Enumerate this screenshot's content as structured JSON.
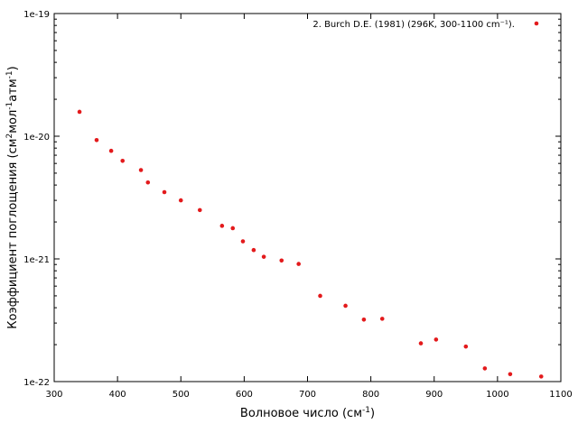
{
  "chart_data": {
    "type": "scatter",
    "title": "",
    "xlabel": {
      "base": "Волновое число (см",
      "sup": "-1",
      "tail": ")"
    },
    "ylabel": {
      "p1": "Коэффициент поглощения (см",
      "s1": "2",
      "p2": "мол",
      "s2": "-1",
      "p3": "атм",
      "s3": "-1",
      "p4": ")"
    },
    "xlim": [
      300,
      1100
    ],
    "ylim": [
      1e-22,
      1e-19
    ],
    "yscale": "log",
    "grid": false,
    "legend_position": "top-right",
    "x_ticks": [
      {
        "value": 300,
        "label": "300"
      },
      {
        "value": 400,
        "label": "400"
      },
      {
        "value": 500,
        "label": "500"
      },
      {
        "value": 600,
        "label": "600"
      },
      {
        "value": 700,
        "label": "700"
      },
      {
        "value": 800,
        "label": "800"
      },
      {
        "value": 900,
        "label": "900"
      },
      {
        "value": 1000,
        "label": "1000"
      },
      {
        "value": 1100,
        "label": "1100"
      }
    ],
    "y_ticks": [
      {
        "value": 1e-22,
        "label": "1e-22"
      },
      {
        "value": 1e-21,
        "label": "1e-21"
      },
      {
        "value": 1e-20,
        "label": "1e-20"
      },
      {
        "value": 1e-19,
        "label": "1e-19"
      }
    ],
    "series": [
      {
        "name": "2. Burch D.E. (1981) (296K, 300-1100 cm⁻¹).",
        "color": "#e31a1c",
        "marker": "circle",
        "x": [
          340,
          367,
          390,
          408,
          437,
          448,
          474,
          500,
          530,
          565,
          582,
          598,
          615,
          631,
          659,
          686,
          720,
          760,
          789,
          818,
          879,
          903,
          950,
          980,
          1020,
          1069
        ],
        "y": [
          1.58e-20,
          9.3e-21,
          7.6e-21,
          6.3e-21,
          5.3e-21,
          4.2e-21,
          3.5e-21,
          3e-21,
          2.5e-21,
          1.86e-21,
          1.78e-21,
          1.39e-21,
          1.18e-21,
          1.04e-21,
          9.7e-22,
          9.1e-22,
          5e-22,
          4.15e-22,
          3.2e-22,
          3.25e-22,
          2.05e-22,
          2.2e-22,
          1.93e-22,
          1.28e-22,
          1.15e-22,
          1.1e-22
        ]
      }
    ]
  }
}
